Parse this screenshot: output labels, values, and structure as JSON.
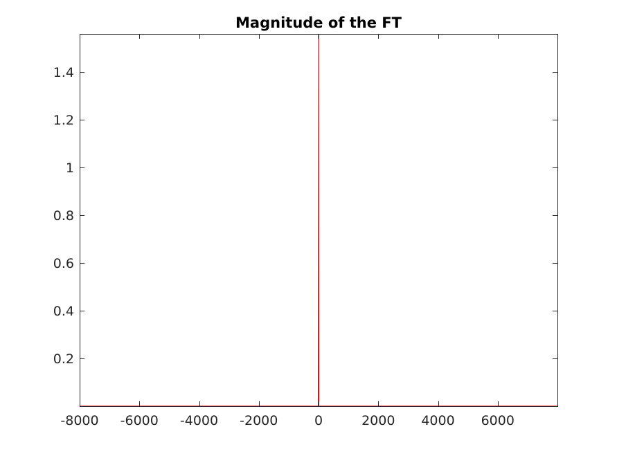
{
  "chart_data": {
    "type": "line",
    "title": "Magnitude of the FT",
    "xlabel": "",
    "ylabel": "",
    "xlim": [
      -8000,
      8000
    ],
    "ylim": [
      0,
      1.56
    ],
    "xticks": [
      -8000,
      -6000,
      -4000,
      -2000,
      0,
      2000,
      4000,
      6000
    ],
    "xtick_labels": [
      "-8000",
      "-6000",
      "-4000",
      "-2000",
      "0",
      "2000",
      "4000",
      "6000"
    ],
    "yticks": [
      0.2,
      0.4,
      0.6,
      0.8,
      1,
      1.2,
      1.4
    ],
    "ytick_labels": [
      "0.2",
      "0.4",
      "0.6",
      "0.8",
      "1",
      "1.2",
      "1.4"
    ],
    "grid": false,
    "legend": "none",
    "series": [
      {
        "color": "#ff0000",
        "x": [
          -8000,
          -10,
          0,
          10,
          7999
        ],
        "y": [
          0,
          0,
          1.56,
          0,
          0
        ]
      }
    ]
  }
}
